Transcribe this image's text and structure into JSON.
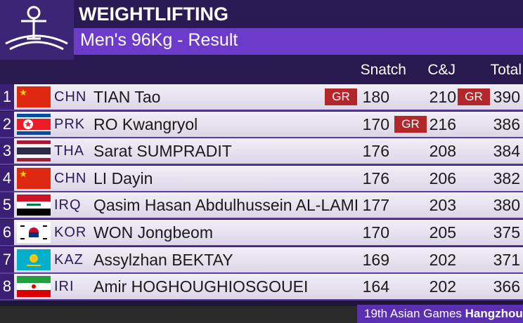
{
  "header": {
    "title": "WEIGHTLIFTING",
    "subtitle": "Men's 96Kg - Result"
  },
  "table": {
    "columns": [
      "Snatch",
      "C&J",
      "Total"
    ],
    "rows": [
      {
        "rank": 1,
        "country": "CHN",
        "name": "TIAN Tao",
        "snatch": 180,
        "cj": 210,
        "total": 390,
        "records": {
          "snatch": "GR",
          "total": "GR"
        }
      },
      {
        "rank": 2,
        "country": "PRK",
        "name": "RO Kwangryol",
        "snatch": 170,
        "cj": 216,
        "total": 386,
        "records": {
          "cj": "GR"
        }
      },
      {
        "rank": 3,
        "country": "THA",
        "name": "Sarat SUMPRADIT",
        "snatch": 176,
        "cj": 208,
        "total": 384
      },
      {
        "rank": 4,
        "country": "CHN",
        "name": "LI Dayin",
        "snatch": 176,
        "cj": 206,
        "total": 382
      },
      {
        "rank": 5,
        "country": "IRQ",
        "name": "Qasim Hasan Abdulhussein AL-LAMI",
        "snatch": 177,
        "cj": 203,
        "total": 380
      },
      {
        "rank": 6,
        "country": "KOR",
        "name": "WON Jongbeom",
        "snatch": 170,
        "cj": 205,
        "total": 375
      },
      {
        "rank": 7,
        "country": "KAZ",
        "name": "Assylzhan BEKTAY",
        "snatch": 169,
        "cj": 202,
        "total": 371
      },
      {
        "rank": 8,
        "country": "IRI",
        "name": "Amir HOGHOUGHIOSGOUEI",
        "snatch": 164,
        "cj": 202,
        "total": 366
      }
    ]
  },
  "footer": {
    "event": "19th Asian Games",
    "city": "Hangzhou"
  }
}
